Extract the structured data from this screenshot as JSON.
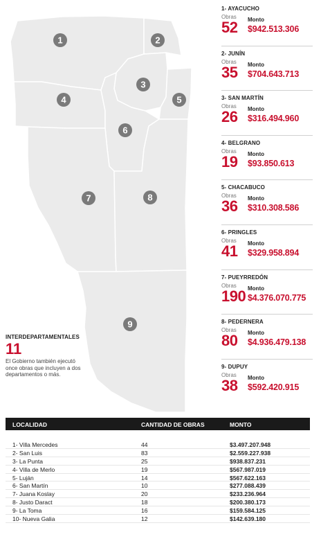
{
  "map": {
    "markers": [
      "1",
      "2",
      "3",
      "4",
      "5",
      "6",
      "7",
      "8",
      "9"
    ],
    "fill_color": "#ebebeb",
    "border_color": "#ffffff",
    "marker_color": "#7a7a7a"
  },
  "interdepartamentales": {
    "title": "INTERDEPARTAMENTALES",
    "count": "11",
    "text": "El Gobierno también ejecutó once obras que incluyen a dos departamentos o más."
  },
  "labels": {
    "obras": "Obras",
    "monto": "Monto"
  },
  "departments": [
    {
      "title": "1- AYACUCHO",
      "obras": "52",
      "monto": "$942.513.306"
    },
    {
      "title": "2- JUNÍN",
      "obras": "35",
      "monto": "$704.643.713"
    },
    {
      "title": "3- SAN MARTÍN",
      "obras": "26",
      "monto": "$316.494.960"
    },
    {
      "title": "4- BELGRANO",
      "obras": "19",
      "monto": "$93.850.613"
    },
    {
      "title": "5- CHACABUCO",
      "obras": "36",
      "monto": "$310.308.586"
    },
    {
      "title": "6- PRINGLES",
      "obras": "41",
      "monto": "$329.958.894"
    },
    {
      "title": "7- PUEYRREDÓN",
      "obras": "190",
      "monto": "$4.376.070.775"
    },
    {
      "title": "8- PEDERNERA",
      "obras": "80",
      "monto": "$4.936.479.138"
    },
    {
      "title": "9- DUPUY",
      "obras": "38",
      "monto": "$592.420.915"
    }
  ],
  "table": {
    "headers": {
      "localidad": "LOCALIDAD",
      "cantidad": "CANTIDAD DE OBRAS",
      "monto": "MONTO"
    },
    "rows": [
      {
        "localidad": "1- Villa Mercedes",
        "cantidad": "44",
        "monto": "$3.497.207.948"
      },
      {
        "localidad": "2- San Luis",
        "cantidad": "83",
        "monto": "$2.559.227.938"
      },
      {
        "localidad": "3- La Punta",
        "cantidad": "25",
        "monto": "$938.837.231"
      },
      {
        "localidad": "4- Villa de Merlo",
        "cantidad": "19",
        "monto": "$567.987.019"
      },
      {
        "localidad": "5- Luján",
        "cantidad": "14",
        "monto": "$567.622.163"
      },
      {
        "localidad": "6- San Martín",
        "cantidad": "10",
        "monto": "$277.088.439"
      },
      {
        "localidad": "7- Juana Koslay",
        "cantidad": "20",
        "monto": "$233.236.964"
      },
      {
        "localidad": "8- Justo Daract",
        "cantidad": "18",
        "monto": "$200.380.173"
      },
      {
        "localidad": "9- La Toma",
        "cantidad": "16",
        "monto": "$159.584.125"
      },
      {
        "localidad": "10- Nueva Galia",
        "cantidad": "12",
        "monto": "$142.639.180"
      }
    ]
  }
}
